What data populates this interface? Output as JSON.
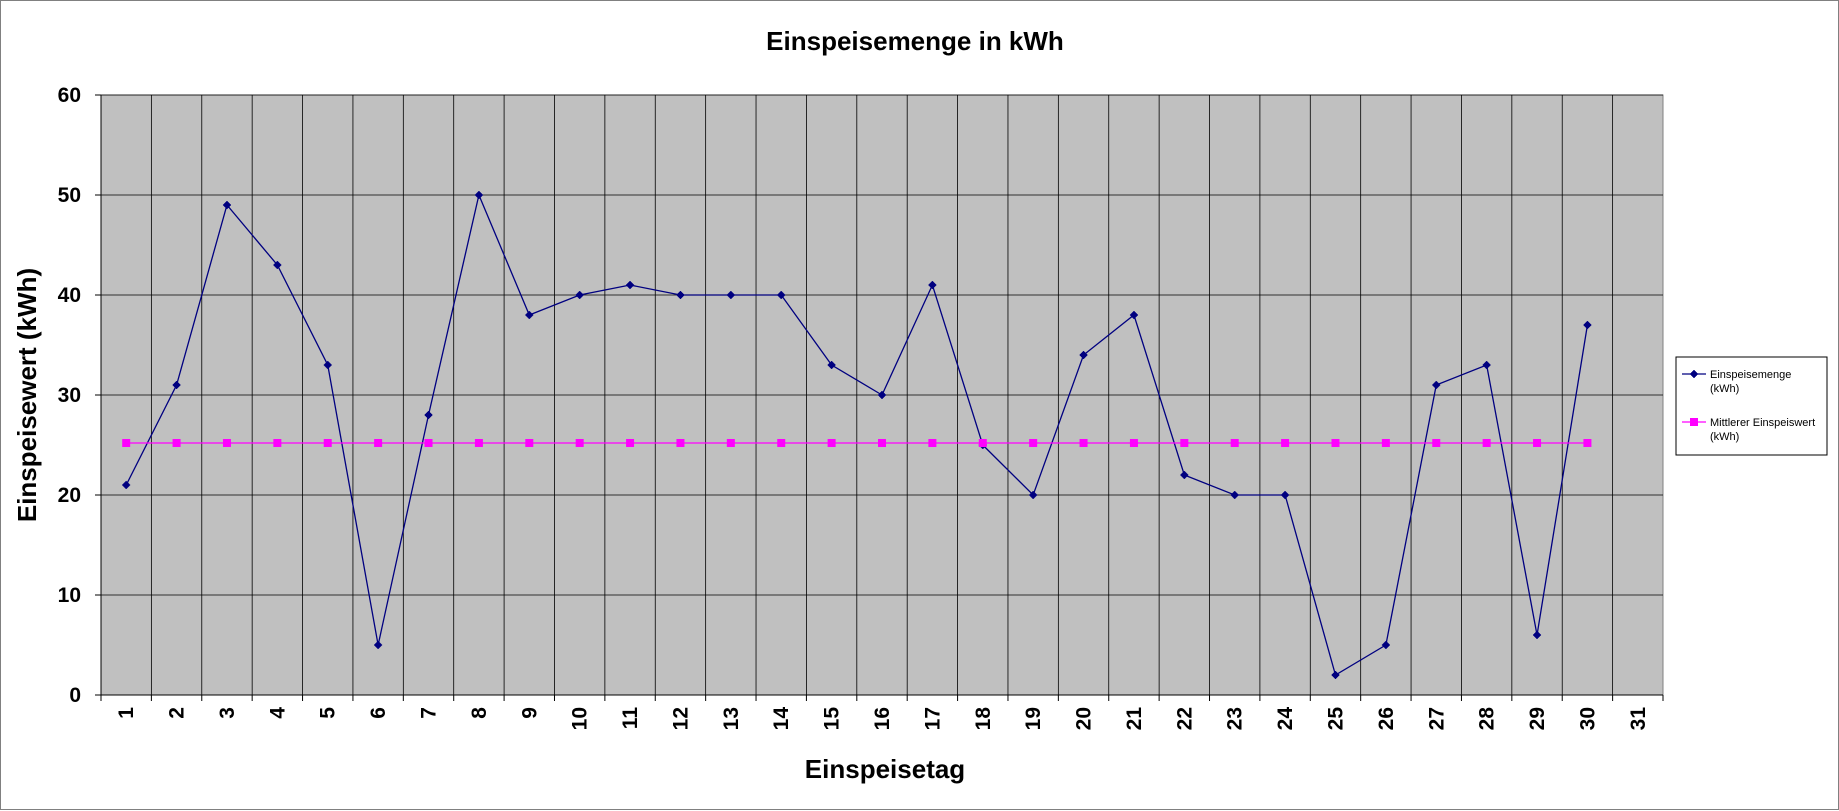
{
  "chart_data": {
    "type": "line",
    "title": "Einspeisemenge in kWh",
    "xlabel": "Einspeisetag",
    "ylabel": "Einspeisewert  (kWh)",
    "categories": [
      "1",
      "2",
      "3",
      "4",
      "5",
      "6",
      "7",
      "8",
      "9",
      "10",
      "11",
      "12",
      "13",
      "14",
      "15",
      "16",
      "17",
      "18",
      "19",
      "20",
      "21",
      "22",
      "23",
      "24",
      "25",
      "26",
      "27",
      "28",
      "29",
      "30",
      "31"
    ],
    "ylim": [
      0,
      60
    ],
    "yticks": [
      "0",
      "10",
      "20",
      "30",
      "40",
      "50",
      "60"
    ],
    "grid": true,
    "legend_position": "right",
    "plot_background": "#c0c0c0",
    "series": [
      {
        "name": "Einspeisemenge (kWh)",
        "legend_lines": [
          "Einspeisemenge",
          "(kWh)"
        ],
        "color": "#000080",
        "marker": "diamond",
        "values": [
          21,
          31,
          49,
          43,
          33,
          5,
          28,
          50,
          38,
          40,
          41,
          40,
          40,
          40,
          33,
          30,
          41,
          25,
          20,
          34,
          38,
          22,
          20,
          20,
          2,
          5,
          31,
          33,
          6,
          37,
          null
        ]
      },
      {
        "name": "Mittlerer Einspeiswert (kWh)",
        "legend_lines": [
          "Mittlerer Einspeiswert",
          "(kWh)"
        ],
        "color": "#ff00ff",
        "marker": "square",
        "values": [
          25.2,
          25.2,
          25.2,
          25.2,
          25.2,
          25.2,
          25.2,
          25.2,
          25.2,
          25.2,
          25.2,
          25.2,
          25.2,
          25.2,
          25.2,
          25.2,
          25.2,
          25.2,
          25.2,
          25.2,
          25.2,
          25.2,
          25.2,
          25.2,
          25.2,
          25.2,
          25.2,
          25.2,
          25.2,
          25.2,
          null
        ]
      }
    ]
  }
}
